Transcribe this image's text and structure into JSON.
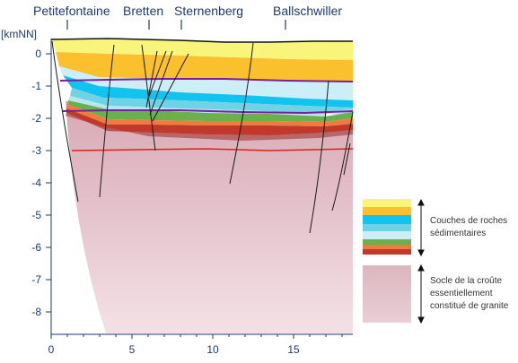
{
  "towns": [
    "Petitefontaine",
    "Bretten",
    "Sternenberg",
    "Ballschwiller"
  ],
  "y_unit_label": "[kmNN]",
  "chart_data": {
    "type": "diagram",
    "x_ticks": [
      "0",
      "5",
      "10",
      "15"
    ],
    "y_ticks": [
      "0",
      "-1",
      "-2",
      "-3",
      "-4",
      "-5",
      "-6",
      "-7",
      "-8"
    ],
    "xlim": [
      0,
      18.5
    ],
    "ylim": [
      -9,
      0.5
    ]
  },
  "legend": {
    "sediment_label_line1": "Couches de roches",
    "sediment_label_line2": "sédimentaires",
    "basement_label_line1": "Socle de la croûte",
    "basement_label_line2": "essentiellement",
    "basement_label_line3": "constitué de granite"
  },
  "colors": {
    "yellow": "#f9f57a",
    "orange": "#fbc02d",
    "cyan": "#11c4ef",
    "light_cyan": "#6fd3e3",
    "pale_blue": "#b8e6f0",
    "green": "#6ab04c",
    "orange2": "#f07b3f",
    "red_layer": "#c0392b",
    "basement": "#e8c7cf",
    "purple": "#7a1fa2",
    "red_line": "#e0201b"
  }
}
